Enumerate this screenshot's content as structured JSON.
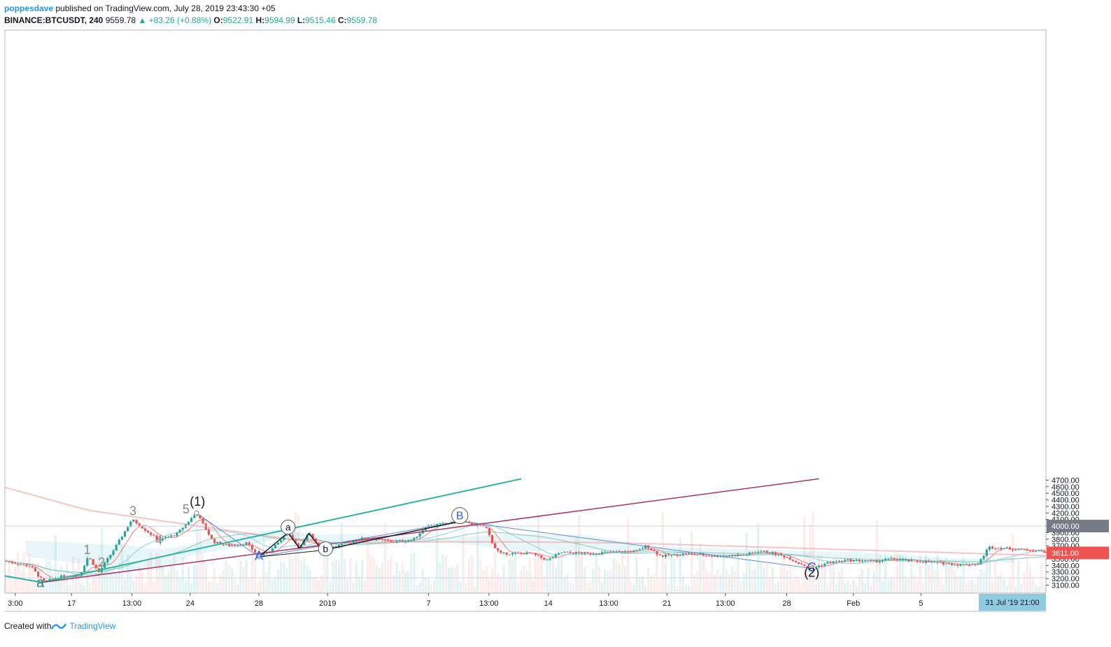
{
  "header": {
    "author": "poppesdave",
    "published_text": "published on TradingView.com, July 28, 2019 23:43:30 +05",
    "symbol": "BINANCE:BTCUSDT, 240",
    "last": "9559.78",
    "change": "+83.26 (+0.88%)",
    "o_label": "O:",
    "o": "9522.91",
    "h_label": "H:",
    "h": "9594.99",
    "l_label": "L:",
    "l": "9515.46",
    "c_label": "C:",
    "c": "9559.78"
  },
  "footer": {
    "created_with": "Created with",
    "brand": "TradingView"
  },
  "colors": {
    "up": "#26a69a",
    "down": "#ef5350",
    "teal_line": "#2ab39f",
    "purple_line": "#a8365f",
    "abc_blue": "#5b8dd9",
    "price_tag": "#ef5350",
    "time_tag": "#8ecae0"
  },
  "chart_data": {
    "type": "candlestick",
    "ylim": [
      3020,
      4720
    ],
    "y_ticks": [
      "3100.00",
      "3200.00",
      "3300.00",
      "3400.00",
      "3500.00",
      "3600.00",
      "3700.00",
      "3800.00",
      "3900.00",
      "4000.00",
      "4100.00",
      "4200.00",
      "4300.00",
      "4400.00",
      "4500.00",
      "4600.00",
      "4700.00"
    ],
    "x_tick_labels": [
      "3:00",
      "17",
      "13:00",
      "24",
      "28",
      "2019",
      "7",
      "13:00",
      "14",
      "13:00",
      "21",
      "13:00",
      "28",
      "Feb",
      "5"
    ],
    "current_price_tag": "3611.00",
    "hline_tag": "4000.00",
    "time_tag": "31 Jul '19   21:00",
    "wave_labels": [
      "a",
      "1",
      "2",
      "3",
      "4",
      "5",
      "(1)",
      "A",
      "a",
      "b",
      "B",
      "C",
      "(2)"
    ],
    "pivots": {
      "wave_a": 3145,
      "w1": 3540,
      "w2": 3290,
      "w3": 4100,
      "w4": 3780,
      "w5": 4200,
      "A": 3530,
      "a": 3900,
      "b": 3630,
      "B": 4070,
      "C": 3355
    }
  }
}
